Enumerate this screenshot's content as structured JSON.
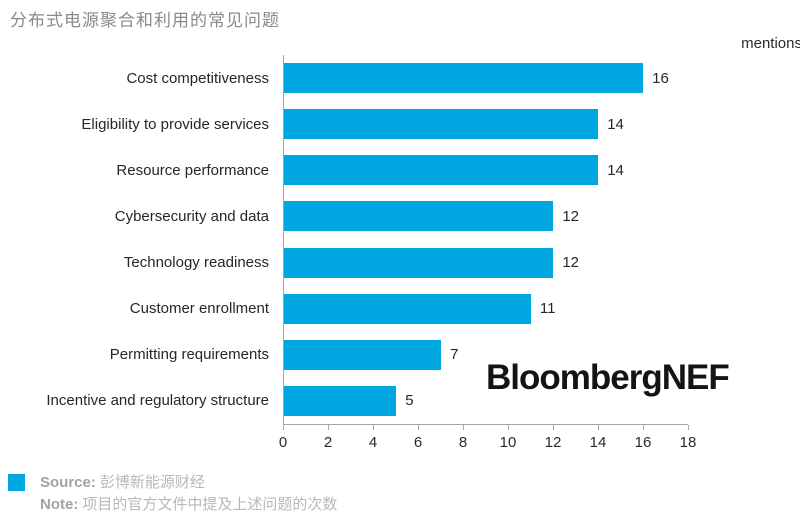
{
  "header": {
    "title": "分布式电源聚合和利用的常见问题"
  },
  "chart_data": {
    "type": "bar",
    "orientation": "horizontal",
    "title": "分布式电源聚合和利用的常见问题",
    "unit_label": "mentions",
    "categories": [
      "Cost competitiveness",
      "Eligibility to provide services",
      "Resource performance",
      "Cybersecurity and data",
      "Technology readiness",
      "Customer enrollment",
      "Permitting requirements",
      "Incentive and regulatory structure"
    ],
    "values": [
      16,
      14,
      14,
      12,
      12,
      11,
      7,
      5
    ],
    "xlim": [
      0,
      18
    ],
    "x_ticks": [
      0,
      2,
      4,
      6,
      8,
      10,
      12,
      14,
      16,
      18
    ],
    "grid": false,
    "value_labels": true,
    "legend_position": "none",
    "bar_color": "#00a6e0"
  },
  "watermark": "BloombergNEF",
  "footer": {
    "legend_color": "#00a6e0",
    "source_label": "Source:",
    "source_text": "彭博新能源财经",
    "note_label": "Note:",
    "note_text": "项目的官方文件中提及上述问题的次数"
  }
}
